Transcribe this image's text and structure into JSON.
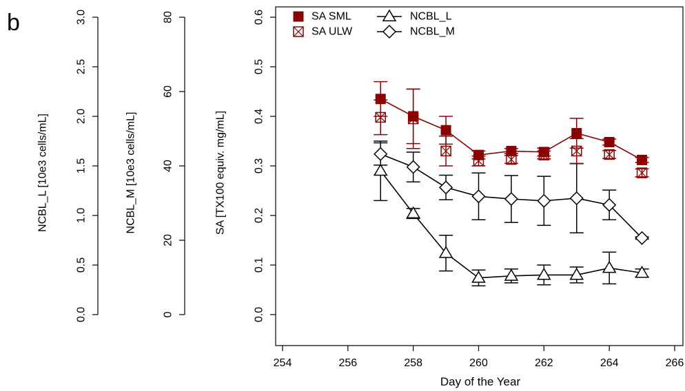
{
  "panel_label": "b",
  "chart_data": {
    "type": "line",
    "xlabel": "Day of the Year",
    "xlim": [
      254,
      266
    ],
    "x_ticks": [
      "254",
      "256",
      "258",
      "260",
      "262",
      "264",
      "266"
    ],
    "colors": {
      "sa": "#8b0000",
      "ncbl": "#000000"
    },
    "legend": {
      "placement": "top-left",
      "entries": [
        {
          "name": "SA SML",
          "marker": "filled-square",
          "color": "#8b0000"
        },
        {
          "name": "SA ULW",
          "marker": "crossed-square",
          "color": "#8b0000"
        },
        {
          "name": "NCBL_L",
          "marker": "open-triangle",
          "color": "#000000"
        },
        {
          "name": "NCBL_M",
          "marker": "open-diamond",
          "color": "#000000"
        }
      ]
    },
    "axes": [
      {
        "id": "ncbl_l",
        "label": "NCBL_L [10e3 cells/mL]",
        "ylim": [
          0,
          3.0
        ],
        "ticks": [
          "0.0",
          "0.5",
          "1.0",
          "1.5",
          "2.0",
          "2.5",
          "3.0"
        ]
      },
      {
        "id": "ncbl_m",
        "label": "NCBL_M [10e3 cells/mL]",
        "ylim": [
          0,
          80
        ],
        "ticks": [
          "0",
          "20",
          "40",
          "60",
          "80"
        ]
      },
      {
        "id": "sa",
        "label": "SA [TX100 equiv. mg/mL]",
        "ylim": [
          0,
          0.6
        ],
        "ticks": [
          "0.0",
          "0.1",
          "0.2",
          "0.3",
          "0.4",
          "0.5",
          "0.6"
        ]
      }
    ],
    "series": [
      {
        "name": "SA SML",
        "axis": "sa",
        "line": true,
        "x": [
          257,
          258,
          259,
          260,
          261,
          262,
          263,
          264,
          265
        ],
        "y": [
          0.435,
          0.4,
          0.372,
          0.322,
          0.33,
          0.328,
          0.366,
          0.348,
          0.312
        ],
        "err": [
          0.035,
          0.055,
          0.028,
          0.008,
          0.005,
          0.008,
          0.03,
          0.006,
          0.005
        ]
      },
      {
        "name": "SA ULW",
        "axis": "sa",
        "line": false,
        "x": [
          257,
          258,
          259,
          260,
          261,
          262,
          263,
          264,
          265
        ],
        "y": [
          0.398,
          0.395,
          0.33,
          0.31,
          0.313,
          0.322,
          0.33,
          0.323,
          0.286
        ],
        "err": [
          0.035,
          0.06,
          0.03,
          0.01,
          0.008,
          0.008,
          0.025,
          0.008,
          0.008
        ]
      },
      {
        "name": "NCBL_M",
        "axis": "ncbl_m",
        "line": true,
        "x": [
          257,
          258,
          259,
          260,
          261,
          262,
          263,
          264,
          265
        ],
        "y": [
          43.2,
          39.7,
          34.2,
          31.8,
          31.1,
          30.6,
          31.3,
          29.5,
          20.6
        ],
        "err": [
          3.0,
          4.0,
          3.3,
          6.3,
          6.3,
          6.6,
          9.3,
          4.0,
          0.3
        ]
      },
      {
        "name": "NCBL_L",
        "axis": "ncbl_l",
        "line": true,
        "x": [
          257,
          258,
          259,
          260,
          261,
          262,
          263,
          264,
          265
        ],
        "y": [
          1.45,
          1.02,
          0.62,
          0.37,
          0.39,
          0.4,
          0.4,
          0.47,
          0.42
        ],
        "err": [
          0.3,
          0.05,
          0.18,
          0.08,
          0.07,
          0.1,
          0.08,
          0.16,
          0.04
        ]
      }
    ]
  }
}
